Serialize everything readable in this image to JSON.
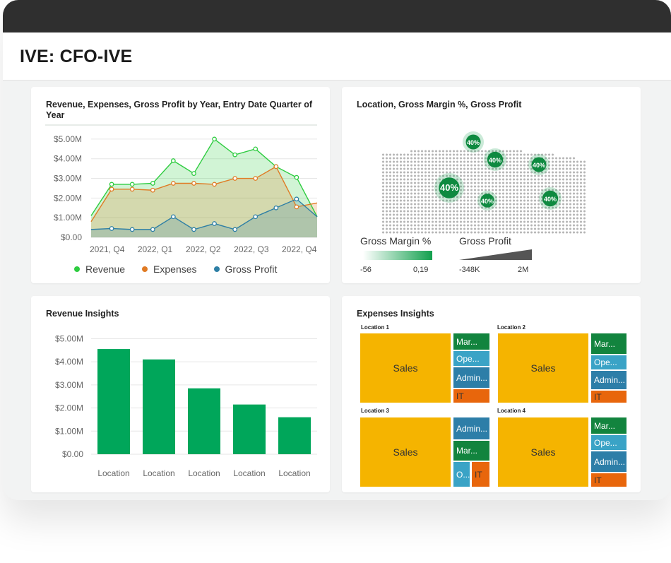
{
  "app": {
    "title": "IVE: CFO-IVE"
  },
  "colors": {
    "revenue": "#2ecc40",
    "expenses": "#e07b24",
    "gross_profit": "#2e7fa5",
    "bar": "#00a65a",
    "tm_sales": "#f5b400",
    "tm_marketing": "#12843e",
    "tm_operations": "#3aa3c6",
    "tm_admin": "#2d7ea8",
    "tm_it": "#e8660c"
  },
  "line_chart": {
    "title": "Revenue, Expenses, Gross Profit by Year, Entry Date Quarter of Year",
    "legend": [
      {
        "label": "Revenue",
        "color": "#2ecc40"
      },
      {
        "label": "Expenses",
        "color": "#e07b24"
      },
      {
        "label": "Gross Profit",
        "color": "#2e7fa5"
      }
    ]
  },
  "map": {
    "title": "Location, Gross Margin %, Gross Profit",
    "bubble_label": "40%",
    "legend": {
      "margin_title": "Gross Margin %",
      "margin_min": "-56",
      "margin_max": "0,19",
      "profit_title": "Gross Profit",
      "profit_min": "-348K",
      "profit_max": "2M"
    }
  },
  "bar_chart": {
    "title": "Revenue Insights"
  },
  "treemap": {
    "title": "Expenses Insights",
    "groups": [
      {
        "location": "Location 1",
        "cells": [
          {
            "label": "Sales"
          },
          {
            "label": "Mar..."
          },
          {
            "label": "Ope..."
          },
          {
            "label": "Admin..."
          },
          {
            "label": "IT"
          }
        ]
      },
      {
        "location": "Location 2",
        "cells": [
          {
            "label": "Sales"
          },
          {
            "label": "Mar..."
          },
          {
            "label": "Ope..."
          },
          {
            "label": "Admin..."
          },
          {
            "label": "IT"
          }
        ]
      },
      {
        "location": "Location 3",
        "cells": [
          {
            "label": "Sales"
          },
          {
            "label": "Admin..."
          },
          {
            "label": "Mar..."
          },
          {
            "label": "O..."
          },
          {
            "label": "IT"
          }
        ]
      },
      {
        "location": "Location 4",
        "cells": [
          {
            "label": "Sales"
          },
          {
            "label": "Mar..."
          },
          {
            "label": "Ope..."
          },
          {
            "label": "Admin..."
          },
          {
            "label": "IT"
          }
        ]
      }
    ]
  },
  "chart_data": [
    {
      "type": "area",
      "title": "Revenue, Expenses, Gross Profit by Year, Entry Date Quarter of Year",
      "x_tick_labels": [
        "2021, Q4",
        "2022, Q1",
        "2022, Q2",
        "2022, Q3",
        "2022, Q4"
      ],
      "y_tick_labels": [
        "$0.00",
        "$1.00M",
        "$2.00M",
        "$3.00M",
        "$4.00M",
        "$5.00M"
      ],
      "ylim": [
        0,
        5.5
      ],
      "grid": true,
      "legend_position": "bottom",
      "series": [
        {
          "name": "Revenue",
          "values": [
            1.1,
            2.7,
            2.7,
            2.75,
            3.9,
            3.25,
            5.0,
            4.2,
            4.5,
            3.6,
            3.05,
            1.05
          ]
        },
        {
          "name": "Expenses",
          "values": [
            0.8,
            2.45,
            2.45,
            2.4,
            2.75,
            2.75,
            2.7,
            3.0,
            3.0,
            3.6,
            1.55,
            1.75
          ]
        },
        {
          "name": "Gross Profit",
          "values": [
            0.4,
            0.45,
            0.4,
            0.4,
            1.05,
            0.4,
            0.7,
            0.4,
            1.05,
            1.5,
            1.95,
            1.05
          ]
        }
      ]
    },
    {
      "type": "bar",
      "title": "Revenue Insights",
      "categories": [
        "Location",
        "Location",
        "Location",
        "Location",
        "Location"
      ],
      "values": [
        4.55,
        4.1,
        2.85,
        2.15,
        1.6
      ],
      "y_tick_labels": [
        "$0.00",
        "$1.00M",
        "$2.00M",
        "$3.00M",
        "$4.00M",
        "$5.00M"
      ],
      "ylim": [
        0,
        5.5
      ],
      "grid": true
    }
  ]
}
